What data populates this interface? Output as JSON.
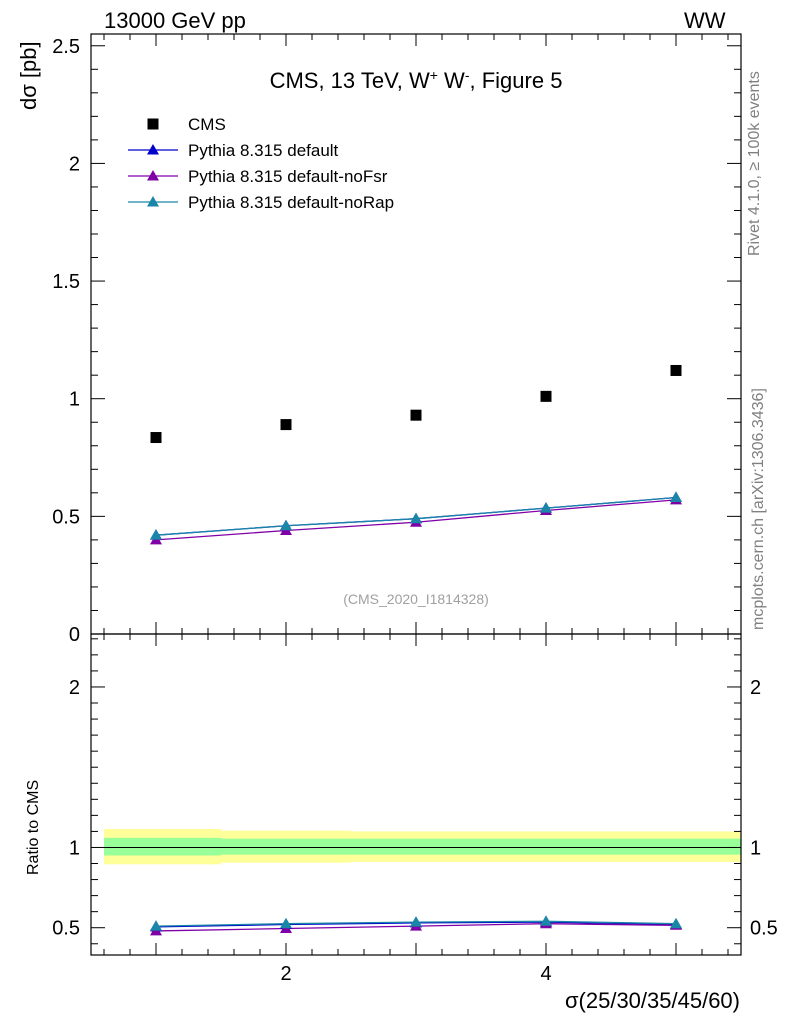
{
  "header": {
    "left": "13000 GeV pp",
    "right": "WW"
  },
  "side_labels": {
    "rivet": "Rivet 4.1.0, ≥ 100k events",
    "mcplots": "mcplots.cern.ch [arXiv:1306.3436]"
  },
  "chart_data": {
    "type": "scatter",
    "title": "CMS, 13 TeV, W",
    "title_sup1": "+",
    "title_mid": " W",
    "title_sup2": "-",
    "title_end": ", Figure 5",
    "analysis_id": "(CMS_2020_I1814328)",
    "xlabel": "σ(25/30/35/45/60)",
    "ylabel": "dσ [pb]",
    "ratio_ylabel": "Ratio to CMS",
    "xlim": [
      0.5,
      5.5
    ],
    "ylim": [
      0,
      2.55
    ],
    "ratio_ylim": [
      0.33,
      2.33
    ],
    "x_ticklabels": [
      "2",
      "4"
    ],
    "y_ticklabels": [
      "0",
      "0.5",
      "1",
      "1.5",
      "2",
      "2.5"
    ],
    "ratio_ticklabels": [
      "0.5",
      "1",
      "2"
    ],
    "legend": [
      "CMS",
      "Pythia 8.315 default",
      "Pythia 8.315 default-noFsr",
      "Pythia 8.315 default-noRap"
    ],
    "data": {
      "name": "CMS",
      "x": [
        1,
        2,
        3,
        4,
        5
      ],
      "y": [
        0.835,
        0.89,
        0.93,
        1.01,
        1.12
      ],
      "band_x": [
        0.6,
        1.5,
        2.5,
        3.5,
        4.5,
        5.5
      ],
      "band_inner_lo": [
        0.95,
        0.955,
        0.955,
        0.955,
        0.955
      ],
      "band_inner_hi": [
        1.06,
        1.055,
        1.055,
        1.055,
        1.055
      ],
      "band_outer_lo": [
        0.895,
        0.905,
        0.91,
        0.91,
        0.91
      ],
      "band_outer_hi": [
        1.115,
        1.105,
        1.1,
        1.1,
        1.1
      ]
    },
    "series": [
      {
        "name": "Pythia 8.315 default",
        "color": "#0000cc",
        "x": [
          1,
          2,
          3,
          4,
          5
        ],
        "y": [
          0.42,
          0.46,
          0.49,
          0.535,
          0.58
        ],
        "ratio": [
          0.505,
          0.52,
          0.53,
          0.535,
          0.52
        ]
      },
      {
        "name": "Pythia 8.315 default-noFsr",
        "color": "#8000a8",
        "x": [
          1,
          2,
          3,
          4,
          5
        ],
        "y": [
          0.4,
          0.44,
          0.475,
          0.525,
          0.57
        ],
        "ratio": [
          0.48,
          0.495,
          0.51,
          0.525,
          0.515
        ]
      },
      {
        "name": "Pythia 8.315 default-noRap",
        "color": "#1a86a8",
        "x": [
          1,
          2,
          3,
          4,
          5
        ],
        "y": [
          0.42,
          0.46,
          0.49,
          0.535,
          0.58
        ],
        "ratio": [
          0.51,
          0.525,
          0.535,
          0.54,
          0.525
        ]
      }
    ]
  }
}
